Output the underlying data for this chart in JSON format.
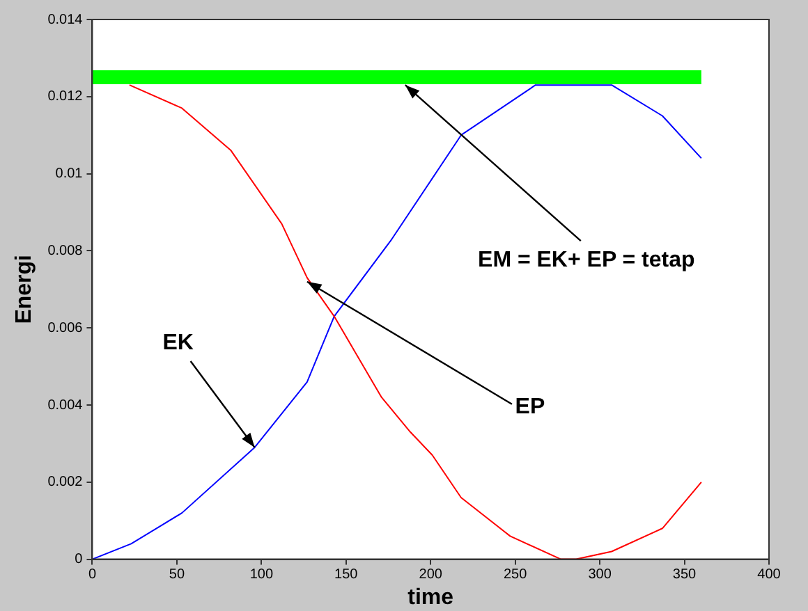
{
  "chart_data": {
    "type": "line",
    "xlabel": "time",
    "ylabel": "Energi",
    "xlim": [
      0,
      400
    ],
    "xticks": [
      0,
      50,
      100,
      150,
      200,
      250,
      300,
      350,
      400
    ],
    "ylim": [
      0,
      0.014
    ],
    "yticks": [
      0,
      0.002,
      0.004,
      0.006,
      0.008,
      0.01,
      0.012,
      0.014
    ],
    "grid": false,
    "legend": false,
    "marker": "none",
    "line_style": "solid",
    "series": [
      {
        "color": "#0000ff",
        "x": [
          0,
          23,
          53,
          96,
          127,
          143,
          177,
          215,
          218,
          262,
          283,
          307,
          337,
          360
        ],
        "values": [
          0,
          0.0004,
          0.0012,
          0.0029,
          0.0046,
          0.0063,
          0.0083,
          0.0108,
          0.011,
          0.0123,
          null,
          0.0123,
          0.0115,
          0.0104
        ]
      },
      {
        "color": "#ff0000",
        "x": [
          22,
          53,
          82,
          112,
          127,
          143,
          171,
          188,
          201,
          218,
          247,
          277,
          286,
          307,
          337,
          360
        ],
        "values": [
          0.0123,
          0.0117,
          0.0106,
          0.0087,
          0.0073,
          0.0063,
          0.0042,
          0.0033,
          0.0027,
          0.0016,
          0.0006,
          0.0,
          0,
          0.0002,
          0.0008,
          0.002
        ]
      },
      {
        "color": "#00ff00",
        "x": [
          0,
          360
        ],
        "values": [
          0.0125,
          0.0125
        ]
      }
    ],
    "annotations": [
      {
        "text": "EK",
        "x": 96,
        "y": 0.0029
      },
      {
        "text": "EP",
        "x": 127,
        "y": 0.0072
      },
      {
        "text": "EM = EK+ EP = tetap",
        "x": 185,
        "y": 0.0123
      }
    ]
  }
}
